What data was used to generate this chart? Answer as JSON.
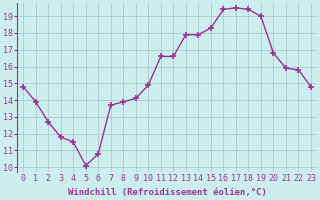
{
  "x": [
    0,
    1,
    2,
    3,
    4,
    5,
    6,
    7,
    8,
    9,
    10,
    11,
    12,
    13,
    14,
    15,
    16,
    17,
    18,
    19,
    20,
    21,
    22,
    23
  ],
  "y": [
    14.8,
    13.9,
    12.7,
    11.8,
    11.5,
    10.1,
    10.8,
    13.7,
    13.9,
    14.1,
    14.9,
    16.6,
    16.6,
    17.9,
    17.9,
    18.3,
    19.4,
    19.5,
    19.4,
    19.0,
    16.8,
    15.9,
    15.8,
    14.8
  ],
  "line_color": "#993399",
  "marker": "+",
  "markersize": 4,
  "markeredgewidth": 1.2,
  "linewidth": 1.0,
  "bg_color": "#cceeee",
  "grid_color": "#aacccc",
  "xlabel": "Windchill (Refroidissement éolien,°C)",
  "xlabel_fontsize": 6.5,
  "tick_fontsize": 6,
  "ylim": [
    9.7,
    19.8
  ],
  "xlim": [
    -0.5,
    23.5
  ],
  "yticks": [
    10,
    11,
    12,
    13,
    14,
    15,
    16,
    17,
    18,
    19
  ],
  "xticks": [
    0,
    1,
    2,
    3,
    4,
    5,
    6,
    7,
    8,
    9,
    10,
    11,
    12,
    13,
    14,
    15,
    16,
    17,
    18,
    19,
    20,
    21,
    22,
    23
  ],
  "spine_color": "#993399"
}
